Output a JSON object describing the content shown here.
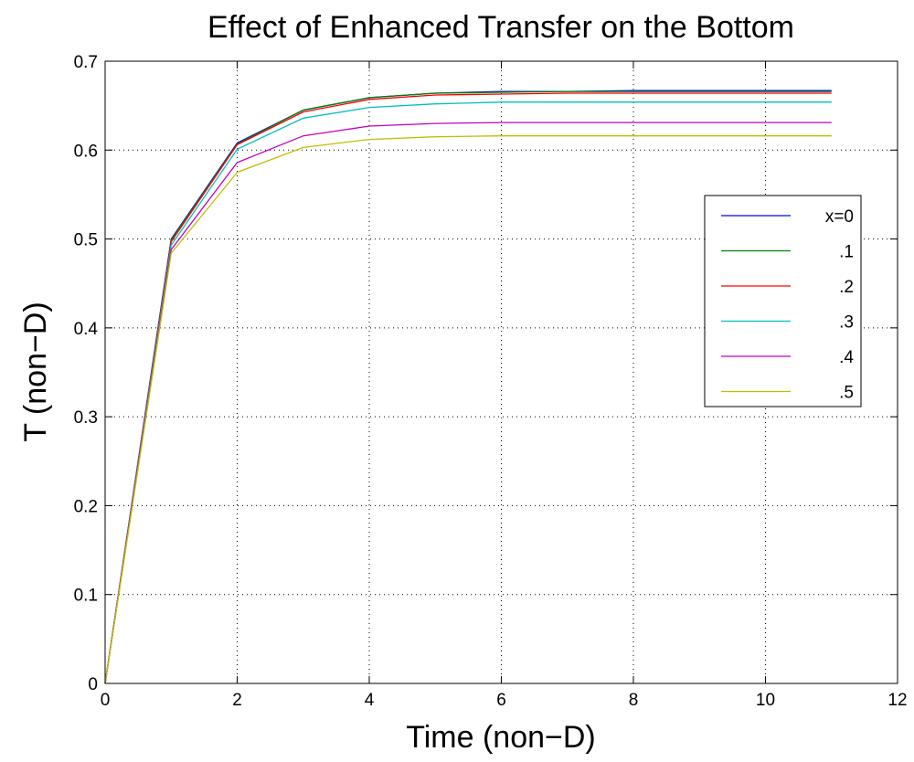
{
  "chart_data": {
    "type": "line",
    "title": "Effect of Enhanced Transfer on the Bottom",
    "xlabel": "Time (non−D)",
    "ylabel": "T (non−D)",
    "xlim": [
      0,
      12
    ],
    "ylim": [
      0,
      0.7
    ],
    "xticks": [
      0,
      2,
      4,
      6,
      8,
      10,
      12
    ],
    "yticks": [
      0,
      0.1,
      0.2,
      0.3,
      0.4,
      0.5,
      0.6,
      0.7
    ],
    "xtick_labels": [
      "0",
      "2",
      "4",
      "6",
      "8",
      "10",
      "12"
    ],
    "ytick_labels": [
      "0",
      "0.1",
      "0.2",
      "0.3",
      "0.4",
      "0.5",
      "0.6",
      "0.7"
    ],
    "grid": true,
    "legend_position": "right",
    "x": [
      0,
      1,
      2,
      3,
      4,
      5,
      6,
      7,
      8,
      9,
      10,
      11
    ],
    "series": [
      {
        "name": "x=0",
        "color": "#0000ff",
        "values": [
          0,
          0.5,
          0.608,
          0.645,
          0.659,
          0.664,
          0.666,
          0.666,
          0.667,
          0.667,
          0.667,
          0.667
        ]
      },
      {
        "name": ".1",
        "color": "#008000",
        "values": [
          0,
          0.499,
          0.607,
          0.645,
          0.659,
          0.664,
          0.665,
          0.666,
          0.666,
          0.666,
          0.666,
          0.666
        ]
      },
      {
        "name": ".2",
        "color": "#ff0000",
        "values": [
          0,
          0.497,
          0.606,
          0.643,
          0.657,
          0.662,
          0.663,
          0.664,
          0.664,
          0.664,
          0.664,
          0.664
        ]
      },
      {
        "name": ".3",
        "color": "#00bfbf",
        "values": [
          0,
          0.493,
          0.601,
          0.636,
          0.648,
          0.652,
          0.654,
          0.654,
          0.654,
          0.654,
          0.654,
          0.654
        ]
      },
      {
        "name": ".4",
        "color": "#bf00bf",
        "values": [
          0,
          0.488,
          0.586,
          0.616,
          0.627,
          0.63,
          0.631,
          0.631,
          0.631,
          0.631,
          0.631,
          0.631
        ]
      },
      {
        "name": ".5",
        "color": "#bfbf00",
        "values": [
          0,
          0.484,
          0.575,
          0.603,
          0.612,
          0.615,
          0.616,
          0.616,
          0.616,
          0.616,
          0.616,
          0.616
        ]
      }
    ]
  }
}
